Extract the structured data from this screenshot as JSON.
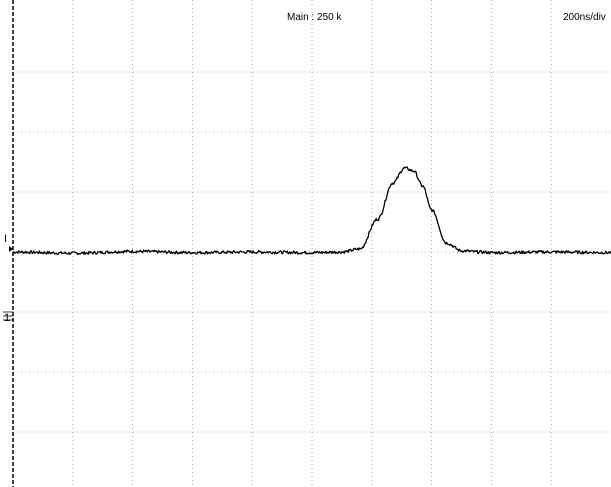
{
  "header": {
    "record_length": "Main : 250 k",
    "timebase": "200ns/div"
  },
  "markers": {
    "trigger_level": "I",
    "ground": "1"
  },
  "chart_data": {
    "type": "line",
    "title": "",
    "xlabel": "",
    "ylabel": "",
    "grid": true,
    "x_unit": "ns",
    "x_divisions": 10,
    "y_divisions": 8,
    "xlim": [
      0,
      2000
    ],
    "ylim": [
      -4,
      4
    ],
    "series": [
      {
        "x": [
          0,
          200,
          400,
          600,
          800,
          1000,
          1100,
          1160,
          1220,
          1270,
          1310,
          1340,
          1370,
          1400,
          1450,
          1500,
          1560,
          1600,
          1800,
          2000
        ],
        "y": [
          0.0,
          -0.02,
          0.01,
          -0.01,
          0.0,
          -0.01,
          0.0,
          0.05,
          0.55,
          1.15,
          1.4,
          1.35,
          1.1,
          0.7,
          0.15,
          0.02,
          0.0,
          -0.01,
          0.0,
          -0.01
        ],
        "color": "#000000"
      }
    ]
  }
}
